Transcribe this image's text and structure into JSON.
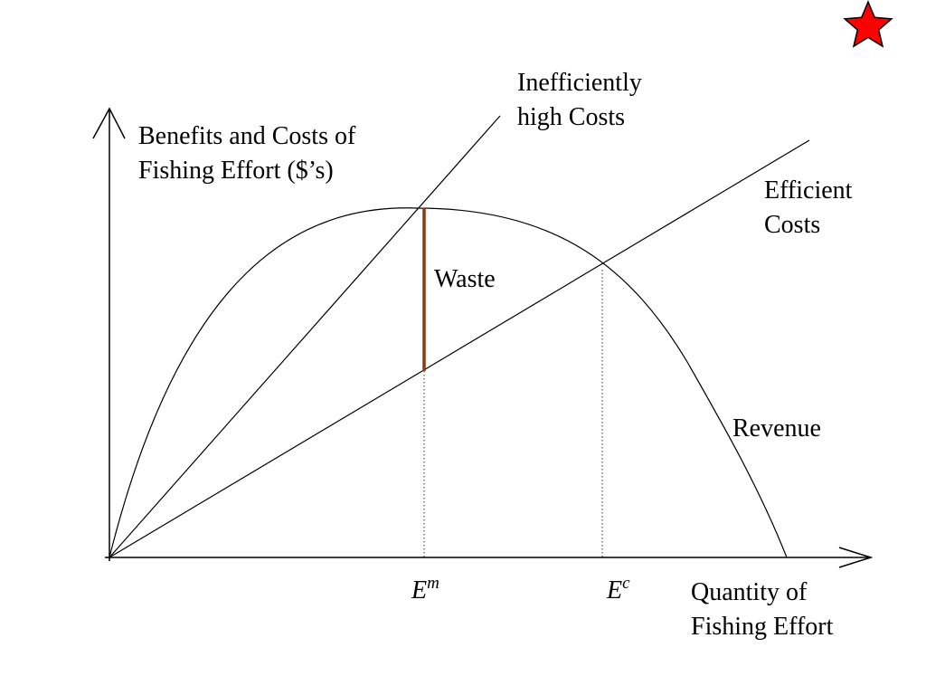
{
  "labels": {
    "y_axis": {
      "line1": "Benefits and Costs of",
      "line2": "Fishing Effort ($’s)"
    },
    "x_axis": {
      "line1": "Quantity of",
      "line2": "Fishing Effort"
    },
    "inefficient_costs": {
      "line1": "Inefficiently",
      "line2": "high Costs"
    },
    "efficient_costs": {
      "line1": "Efficient",
      "line2": "Costs"
    },
    "revenue": "Revenue",
    "waste": "Waste",
    "e_m": {
      "base": "E",
      "sup": "m"
    },
    "e_c": {
      "base": "E",
      "sup": "c"
    }
  },
  "icons": {
    "corner": "red-star-icon"
  },
  "colors": {
    "lines": "#000000",
    "waste": "#8b3a0e",
    "star_fill": "#ff0000",
    "star_stroke": "#000000"
  }
}
